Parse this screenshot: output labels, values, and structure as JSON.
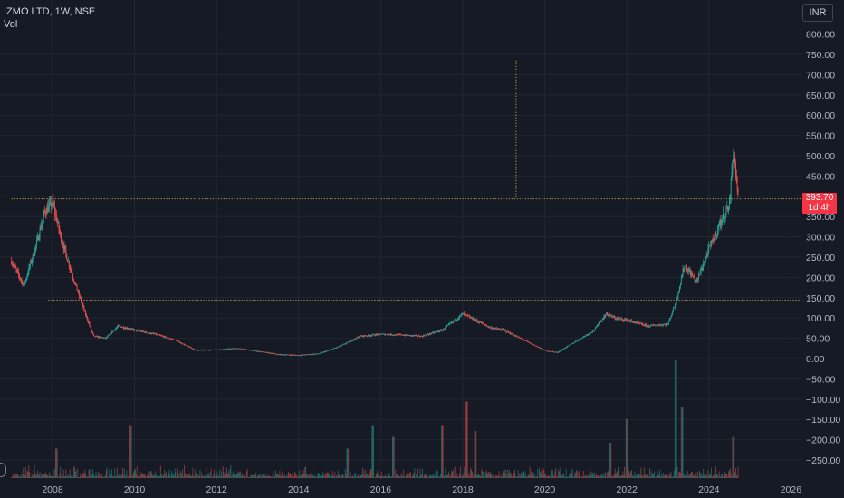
{
  "legend": {
    "symbol_title": "IZMO LTD, 1W, NSE",
    "volume_label": "Vol"
  },
  "currency": "INR",
  "last_price": {
    "value": "393.70",
    "countdown": "1d 4h"
  },
  "colors": {
    "up": "#26a69a",
    "down": "#ef5350",
    "background": "#161a25",
    "grid": "#232632",
    "axis_text": "#b2b5be",
    "level_line": "#f0b35a",
    "price_label_bg": "#f23645"
  },
  "chart_data": {
    "type": "candlestick",
    "interval": "1W",
    "ylim": [
      -280,
      820
    ],
    "y_ticks": [
      "800.00",
      "750.00",
      "700.00",
      "650.00",
      "600.00",
      "550.00",
      "500.00",
      "450.00",
      "400.00",
      "350.00",
      "300.00",
      "250.00",
      "200.00",
      "150.00",
      "100.00",
      "50.00",
      "0.00",
      "−50.00",
      "−100.00",
      "−150.00",
      "−200.00",
      "−250.00"
    ],
    "y_tick_values": [
      800,
      750,
      700,
      650,
      600,
      550,
      500,
      450,
      400,
      350,
      300,
      250,
      200,
      150,
      100,
      50,
      0,
      -50,
      -100,
      -150,
      -200,
      -250
    ],
    "x_ticks": [
      "2008",
      "2010",
      "2012",
      "2014",
      "2016",
      "2018",
      "2020",
      "2022",
      "2024",
      "2026"
    ],
    "horizontal_levels": [
      {
        "price": 393.7,
        "from": "2007"
      },
      {
        "price": 144,
        "from": "2007.9"
      }
    ],
    "vertical_marker": {
      "date": "2019.3",
      "from_price": 393.7,
      "to_price": 735
    },
    "price_path": [
      [
        2007.0,
        240
      ],
      [
        2007.3,
        180
      ],
      [
        2007.6,
        280
      ],
      [
        2007.8,
        360
      ],
      [
        2008.0,
        385
      ],
      [
        2008.2,
        300
      ],
      [
        2008.5,
        200
      ],
      [
        2008.8,
        110
      ],
      [
        2009.0,
        55
      ],
      [
        2009.3,
        50
      ],
      [
        2009.6,
        80
      ],
      [
        2010.0,
        70
      ],
      [
        2010.5,
        60
      ],
      [
        2011.0,
        45
      ],
      [
        2011.5,
        20
      ],
      [
        2012.0,
        22
      ],
      [
        2012.5,
        25
      ],
      [
        2013.0,
        18
      ],
      [
        2013.5,
        10
      ],
      [
        2014.0,
        8
      ],
      [
        2014.5,
        12
      ],
      [
        2015.0,
        30
      ],
      [
        2015.5,
        55
      ],
      [
        2016.0,
        60
      ],
      [
        2016.5,
        58
      ],
      [
        2017.0,
        55
      ],
      [
        2017.5,
        70
      ],
      [
        2018.0,
        110
      ],
      [
        2018.3,
        95
      ],
      [
        2018.7,
        75
      ],
      [
        2019.0,
        70
      ],
      [
        2019.5,
        45
      ],
      [
        2020.0,
        20
      ],
      [
        2020.3,
        15
      ],
      [
        2020.8,
        45
      ],
      [
        2021.2,
        70
      ],
      [
        2021.5,
        110
      ],
      [
        2021.7,
        100
      ],
      [
        2022.0,
        95
      ],
      [
        2022.5,
        80
      ],
      [
        2023.0,
        85
      ],
      [
        2023.2,
        140
      ],
      [
        2023.4,
        230
      ],
      [
        2023.7,
        190
      ],
      [
        2024.0,
        270
      ],
      [
        2024.3,
        340
      ],
      [
        2024.5,
        380
      ],
      [
        2024.6,
        520
      ],
      [
        2024.65,
        460
      ],
      [
        2024.72,
        393.7
      ]
    ],
    "volume_spikes": [
      {
        "x": 2008.1,
        "v": 0.25
      },
      {
        "x": 2009.9,
        "v": 0.45
      },
      {
        "x": 2015.2,
        "v": 0.25
      },
      {
        "x": 2015.8,
        "v": 0.45
      },
      {
        "x": 2016.3,
        "v": 0.35
      },
      {
        "x": 2017.5,
        "v": 0.45
      },
      {
        "x": 2018.1,
        "v": 0.65
      },
      {
        "x": 2018.3,
        "v": 0.4
      },
      {
        "x": 2021.6,
        "v": 0.3
      },
      {
        "x": 2022.0,
        "v": 0.5
      },
      {
        "x": 2023.2,
        "v": 1.0
      },
      {
        "x": 2023.35,
        "v": 0.6
      },
      {
        "x": 2024.6,
        "v": 0.35
      }
    ]
  }
}
